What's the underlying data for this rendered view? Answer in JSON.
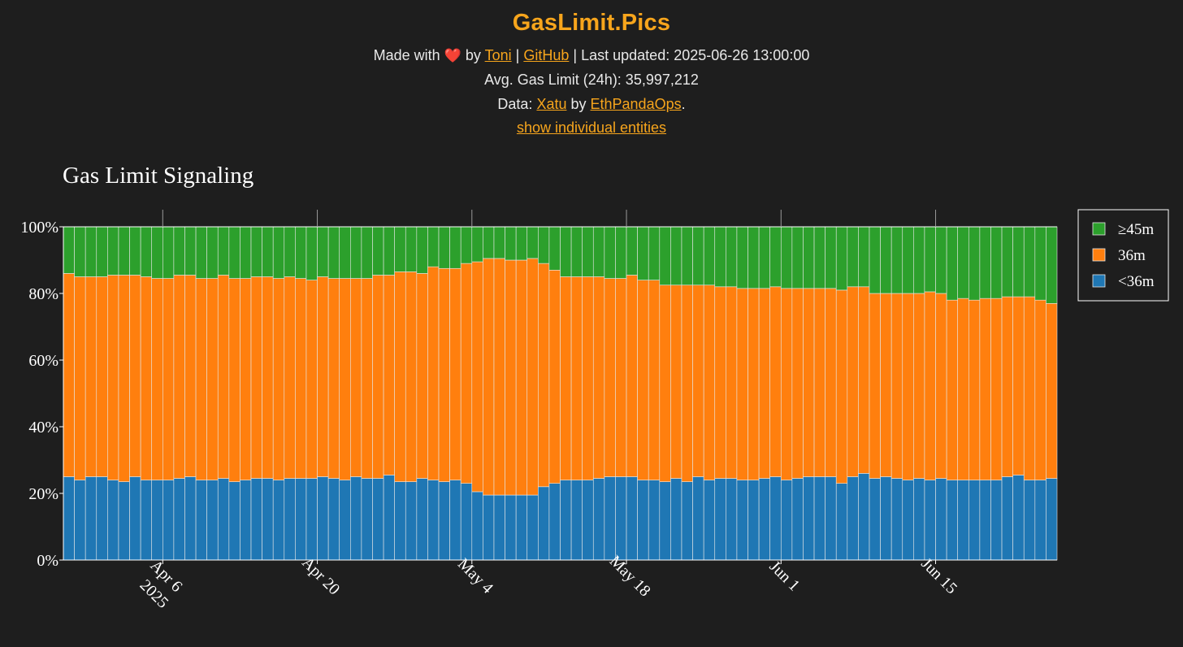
{
  "header": {
    "title": "GasLimit.Pics",
    "made_with": "Made with",
    "heart_icon": "heart-icon",
    "by": "by",
    "author_link": "Toni",
    "separator1": "|",
    "github_link": "GitHub",
    "separator2": "|",
    "last_updated": "Last updated: 2025-06-26 13:00:00",
    "avg_gas": "Avg. Gas Limit (24h): 35,997,212",
    "data_label": "Data:",
    "data_link": "Xatu",
    "data_by": "by",
    "org_link": "EthPandaOps",
    "period": ".",
    "toggle_link": "show individual entities"
  },
  "chart_data": {
    "type": "bar",
    "stacked": true,
    "title": "Gas Limit Signaling",
    "x_start": "2025-03-28",
    "x_end": "2025-06-26",
    "xtick_labels": [
      {
        "date": "2025-04-06",
        "label": "Apr 6",
        "sub": "2025"
      },
      {
        "date": "2025-04-20",
        "label": "Apr 20"
      },
      {
        "date": "2025-05-04",
        "label": "May 4"
      },
      {
        "date": "2025-05-18",
        "label": "May 18"
      },
      {
        "date": "2025-06-01",
        "label": "Jun 1"
      },
      {
        "date": "2025-06-15",
        "label": "Jun 15"
      }
    ],
    "ylim": [
      0,
      100
    ],
    "ytick_labels": [
      "0%",
      "20%",
      "40%",
      "60%",
      "80%",
      "100%"
    ],
    "ytick_values": [
      0,
      20,
      40,
      60,
      80,
      100
    ],
    "legend_position": "top-right",
    "series": [
      {
        "name": "<36m",
        "color": "#1f77b4",
        "values": [
          25,
          24,
          25,
          25,
          24,
          23.5,
          25,
          24,
          24,
          24,
          24.5,
          25,
          24,
          24,
          24.5,
          23.5,
          24,
          24.5,
          24.5,
          24,
          24.5,
          24.5,
          24.5,
          25,
          24.5,
          24,
          25,
          24.5,
          24.5,
          25.5,
          23.5,
          23.5,
          24.5,
          24,
          23.5,
          24,
          23,
          20.5,
          19.5,
          19.5,
          19.5,
          19.5,
          19.5,
          22,
          23,
          24,
          24,
          24,
          24.5,
          25,
          25,
          25,
          24,
          24,
          23.5,
          24.5,
          23.5,
          25,
          24,
          24.5,
          24.5,
          24,
          24,
          24.5,
          25,
          24,
          24.5,
          25,
          25,
          25,
          23,
          25,
          26,
          24.5,
          25,
          24.5,
          24,
          24.5,
          24,
          24.5,
          24,
          24,
          24,
          24,
          24,
          25,
          25.5,
          24,
          24,
          24.5
        ]
      },
      {
        "name": "36m",
        "color": "#ff7f0e",
        "values": [
          61,
          61,
          60,
          60,
          61.5,
          62,
          60.5,
          61,
          60.5,
          60.5,
          61,
          60.5,
          60.5,
          60.5,
          61,
          61,
          60.5,
          60.5,
          60.5,
          60.5,
          60.5,
          60,
          59.5,
          60,
          60,
          60.5,
          59.5,
          60,
          61,
          60,
          63,
          63,
          61.5,
          64,
          64,
          63.5,
          66,
          69,
          71,
          71,
          70.5,
          70.5,
          71,
          67,
          64,
          61,
          61,
          61,
          60.5,
          59.5,
          59.5,
          60.5,
          60,
          60,
          59,
          58,
          59,
          57.5,
          58.5,
          57.5,
          57.5,
          57.5,
          57.5,
          57,
          57,
          57.5,
          57,
          56.5,
          56.5,
          56.5,
          58,
          57,
          56,
          55.5,
          55,
          55.5,
          56,
          55.5,
          56.5,
          55.5,
          54,
          54.5,
          54,
          54.5,
          54.5,
          54,
          53.5,
          55,
          54,
          52.5
        ]
      },
      {
        "name": "≥45m",
        "color": "#2ca02c",
        "values": [
          14,
          15,
          15,
          15,
          14.5,
          14.5,
          14.5,
          15,
          15.5,
          15.5,
          14.5,
          14.5,
          15.5,
          15.5,
          14.5,
          15.5,
          15.5,
          15,
          15,
          15.5,
          15,
          15.5,
          16,
          15,
          15.5,
          15.5,
          15.5,
          15.5,
          14.5,
          14.5,
          13.5,
          13.5,
          14,
          12,
          12.5,
          12.5,
          11,
          10.5,
          9.5,
          9.5,
          10,
          10,
          9.5,
          11,
          13,
          15,
          15,
          15,
          15,
          15.5,
          15.5,
          14.5,
          16,
          16,
          17.5,
          17.5,
          17.5,
          17.5,
          17.5,
          18,
          18,
          18.5,
          18.5,
          18.5,
          18,
          18.5,
          18.5,
          18.5,
          18.5,
          18.5,
          19,
          18,
          18,
          20,
          20,
          20,
          20,
          20,
          19.5,
          20,
          22,
          21.5,
          22,
          21.5,
          21.5,
          21,
          21,
          21,
          22,
          23
        ]
      }
    ]
  }
}
